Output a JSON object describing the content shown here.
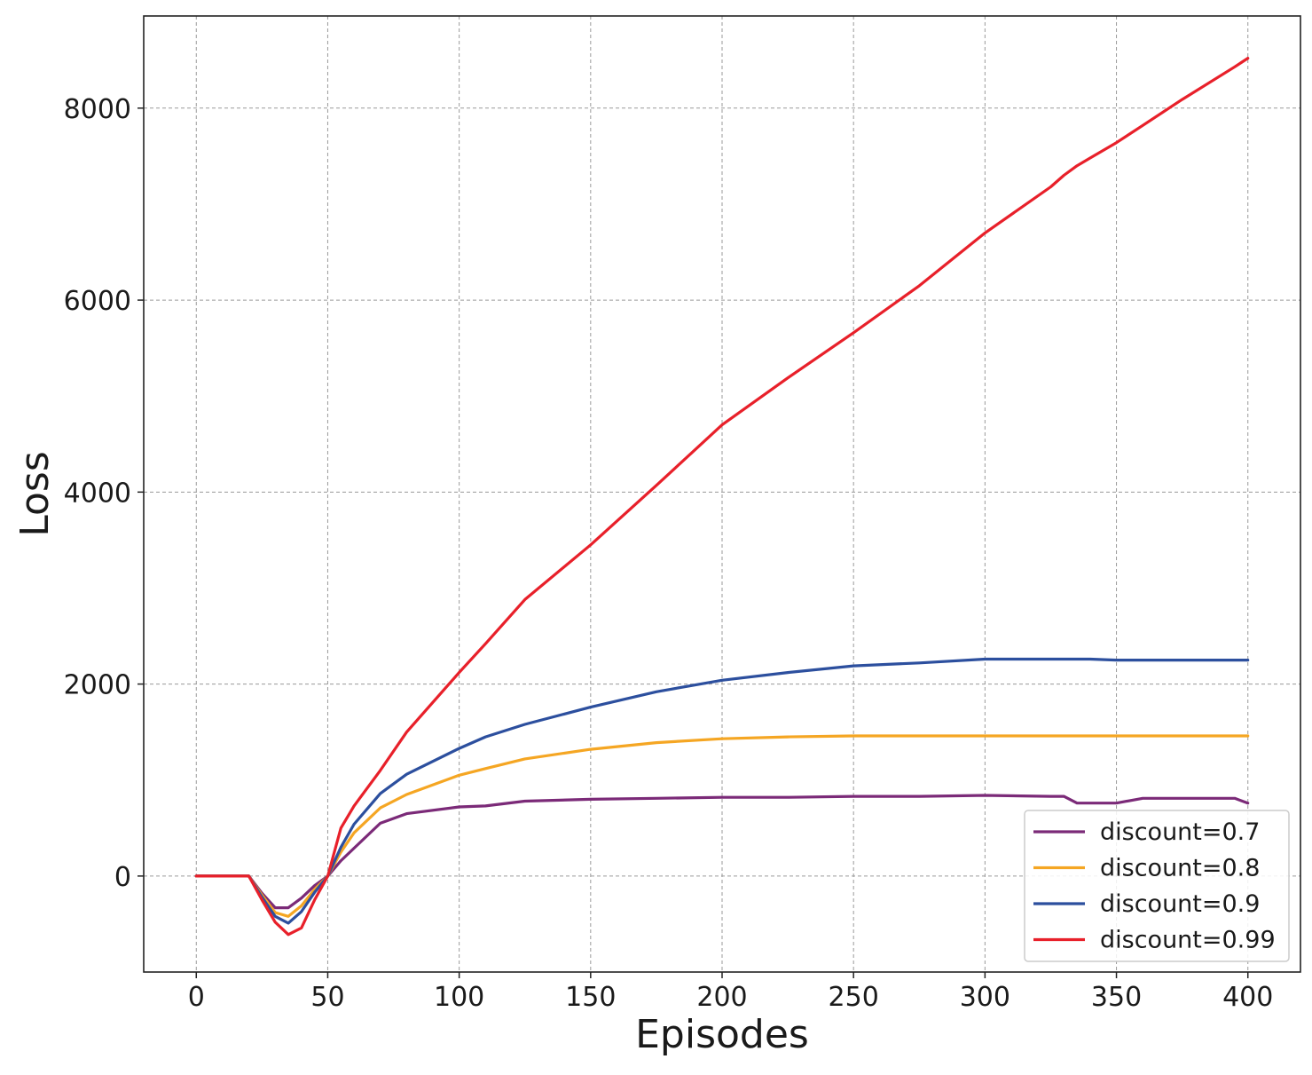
{
  "chart_data": {
    "type": "line",
    "xlabel": "Episodes",
    "ylabel": "Loss",
    "xlim": [
      -20,
      420
    ],
    "ylim": [
      -1000,
      8960
    ],
    "xticks": [
      0,
      50,
      100,
      150,
      200,
      250,
      300,
      350,
      400
    ],
    "yticks": [
      0,
      2000,
      4000,
      6000,
      8000
    ],
    "grid": true,
    "legend_position": "lower-right",
    "x": [
      0,
      20,
      25,
      30,
      35,
      40,
      45,
      50,
      55,
      60,
      70,
      80,
      100,
      110,
      125,
      150,
      175,
      200,
      225,
      250,
      275,
      300,
      325,
      330,
      335,
      340,
      350,
      360,
      375,
      395,
      400
    ],
    "series": [
      {
        "name": "discount=0.7",
        "color": "#7b2a78",
        "values": [
          0,
          0,
          -180,
          -330,
          -330,
          -230,
          -100,
          0,
          160,
          290,
          550,
          650,
          720,
          730,
          780,
          800,
          810,
          820,
          820,
          830,
          830,
          840,
          830,
          830,
          760,
          760,
          760,
          810,
          810,
          810,
          760
        ]
      },
      {
        "name": "discount=0.8",
        "color": "#f5a623",
        "values": [
          0,
          0,
          -200,
          -380,
          -420,
          -310,
          -140,
          0,
          250,
          450,
          710,
          850,
          1050,
          1120,
          1220,
          1320,
          1390,
          1430,
          1450,
          1460,
          1460,
          1460,
          1460,
          1460,
          1460,
          1460,
          1460,
          1460,
          1460,
          1460,
          1460
        ]
      },
      {
        "name": "discount=0.9",
        "color": "#2c4f9e",
        "values": [
          0,
          0,
          -220,
          -420,
          -490,
          -370,
          -170,
          0,
          300,
          540,
          860,
          1060,
          1330,
          1450,
          1580,
          1760,
          1920,
          2040,
          2120,
          2190,
          2220,
          2260,
          2260,
          2260,
          2260,
          2260,
          2250,
          2250,
          2250,
          2250,
          2250
        ]
      },
      {
        "name": "discount=0.99",
        "color": "#e8202a",
        "values": [
          0,
          0,
          -250,
          -480,
          -610,
          -540,
          -250,
          0,
          500,
          730,
          1100,
          1500,
          2120,
          2420,
          2880,
          3450,
          4070,
          4700,
          5190,
          5660,
          6150,
          6700,
          7180,
          7300,
          7400,
          7480,
          7640,
          7820,
          8090,
          8430,
          8520
        ]
      }
    ]
  }
}
